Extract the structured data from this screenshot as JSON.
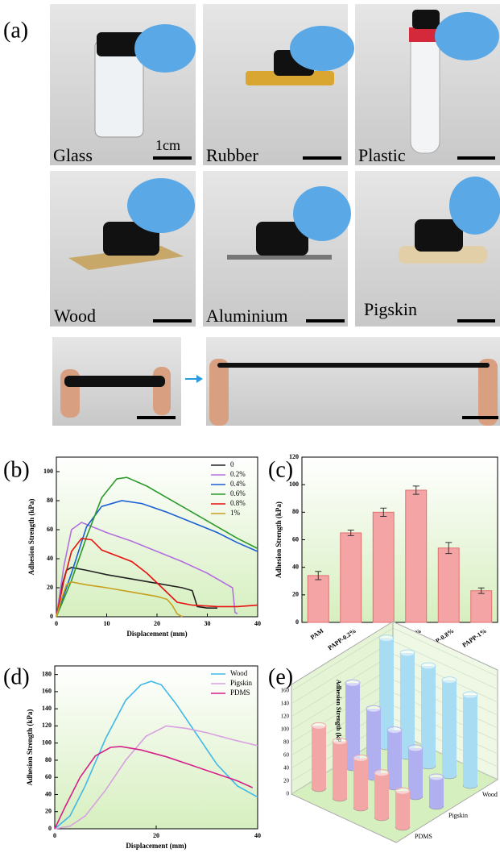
{
  "figure_label": "(a)",
  "photos": [
    {
      "label": "Glass",
      "scale": "1cm"
    },
    {
      "label": "Rubber"
    },
    {
      "label": "Plastic"
    },
    {
      "label": "Wood"
    },
    {
      "label": "Aluminium"
    },
    {
      "label": "Pigskin"
    }
  ],
  "chart_data": [
    {
      "type": "line",
      "panel_label": "(b)",
      "xlabel": "Displacement (mm)",
      "ylabel": "Adhesion Strength (kPa)",
      "xlim": [
        0,
        40
      ],
      "xticks": [
        0,
        10,
        20,
        30,
        40
      ],
      "ylim": [
        0,
        110
      ],
      "yticks": [
        0,
        20,
        40,
        60,
        80,
        100
      ],
      "legend": "top-right",
      "series": [
        {
          "name": "0",
          "color": "#222222",
          "x": [
            0,
            1,
            2,
            3,
            6,
            10,
            15,
            20,
            25,
            27,
            28,
            30,
            32
          ],
          "values": [
            0,
            20,
            32,
            34,
            32,
            29,
            26,
            23,
            20,
            18,
            7,
            6,
            6
          ]
        },
        {
          "name": "0.2%",
          "color": "#b36fe0",
          "x": [
            0,
            1.5,
            3,
            5,
            10,
            15,
            20,
            25,
            30,
            34,
            35,
            35.5,
            36
          ],
          "values": [
            0,
            35,
            60,
            65,
            58,
            52,
            45,
            38,
            30,
            22,
            20,
            3,
            2
          ]
        },
        {
          "name": "0.4%",
          "color": "#1a5fd6",
          "x": [
            0,
            3,
            6,
            9,
            13,
            17,
            22,
            27,
            32,
            36,
            40
          ],
          "values": [
            0,
            30,
            62,
            76,
            80,
            78,
            72,
            65,
            58,
            51,
            45
          ]
        },
        {
          "name": "0.6%",
          "color": "#2a9a2a",
          "x": [
            0,
            3,
            6,
            9,
            12,
            14,
            18,
            22,
            27,
            32,
            36,
            40
          ],
          "values": [
            0,
            25,
            55,
            82,
            95,
            96,
            90,
            82,
            72,
            62,
            54,
            47
          ]
        },
        {
          "name": "0.8%",
          "color": "#e81010",
          "x": [
            0,
            1.5,
            3,
            5,
            7,
            9,
            12,
            15,
            18,
            21,
            24,
            27,
            32,
            36,
            40
          ],
          "values": [
            0,
            25,
            45,
            54,
            53,
            46,
            42,
            38,
            30,
            20,
            10,
            8,
            7,
            7,
            8
          ]
        },
        {
          "name": "1%",
          "color": "#c8a020",
          "x": [
            0,
            1,
            2,
            3,
            6,
            10,
            15,
            20,
            22,
            23,
            24,
            25
          ],
          "values": [
            0,
            12,
            22,
            24,
            22,
            20,
            17,
            14,
            12,
            8,
            2,
            0
          ]
        }
      ]
    },
    {
      "type": "bar",
      "panel_label": "(c)",
      "ylabel": "Adhesion Strength (kPa)",
      "color": "#f4a4a4",
      "categories": [
        "PAM",
        "PAPP-0.2%",
        "PAPP-0.4%",
        "PAPP-0.6%",
        "PAPP-0.8%",
        "PAPP-1%"
      ],
      "values": [
        34,
        65,
        80,
        96,
        54,
        23
      ],
      "errors": [
        3,
        2,
        3,
        3,
        4,
        2
      ],
      "ylim": [
        0,
        120
      ],
      "yticks": [
        0,
        20,
        40,
        60,
        80,
        100,
        120
      ]
    },
    {
      "type": "line",
      "panel_label": "(d)",
      "xlabel": "Displacement (mm)",
      "ylabel": "Adhesion Strength (kPa)",
      "xlim": [
        0,
        40
      ],
      "xticks": [
        0,
        20,
        40
      ],
      "ylim": [
        0,
        190
      ],
      "yticks": [
        0,
        20,
        40,
        60,
        80,
        100,
        120,
        140,
        160,
        180
      ],
      "legend": "top-right",
      "series": [
        {
          "name": "Wood",
          "color": "#3fb8e8",
          "x": [
            0,
            3,
            6,
            10,
            14,
            17,
            19,
            21,
            24,
            28,
            32,
            36,
            40
          ],
          "values": [
            0,
            15,
            50,
            105,
            150,
            168,
            172,
            168,
            145,
            110,
            75,
            50,
            37
          ]
        },
        {
          "name": "Pigskin",
          "color": "#d8a0e0",
          "x": [
            0,
            3,
            6,
            10,
            14,
            18,
            22,
            26,
            30,
            35,
            40
          ],
          "values": [
            0,
            3,
            15,
            45,
            80,
            108,
            120,
            117,
            112,
            104,
            97
          ]
        },
        {
          "name": "PDMS",
          "color": "#d6208a",
          "x": [
            0,
            2,
            5,
            8,
            11,
            13,
            17,
            22,
            27,
            32,
            36,
            39
          ],
          "values": [
            0,
            25,
            60,
            85,
            95,
            96,
            92,
            84,
            74,
            64,
            56,
            48
          ]
        }
      ]
    },
    {
      "type": "bar3d",
      "panel_label": "(e)",
      "ylabel": "Adhesion Strength (kPa)",
      "ylim": [
        0,
        170
      ],
      "yticks": [
        0,
        20,
        40,
        60,
        80,
        100,
        120,
        140,
        160
      ],
      "series": [
        {
          "name": "PDMS",
          "color": "#f2a6a6",
          "values": [
            97,
            88,
            77,
            69,
            56
          ]
        },
        {
          "name": "Pigskin",
          "color": "#b0b0f0",
          "values": [
            131,
            106,
            88,
            75,
            45
          ]
        },
        {
          "name": "Wood",
          "color": "#a8dcf2",
          "values": [
            168,
            160,
            155,
            148,
            140
          ]
        }
      ]
    }
  ]
}
